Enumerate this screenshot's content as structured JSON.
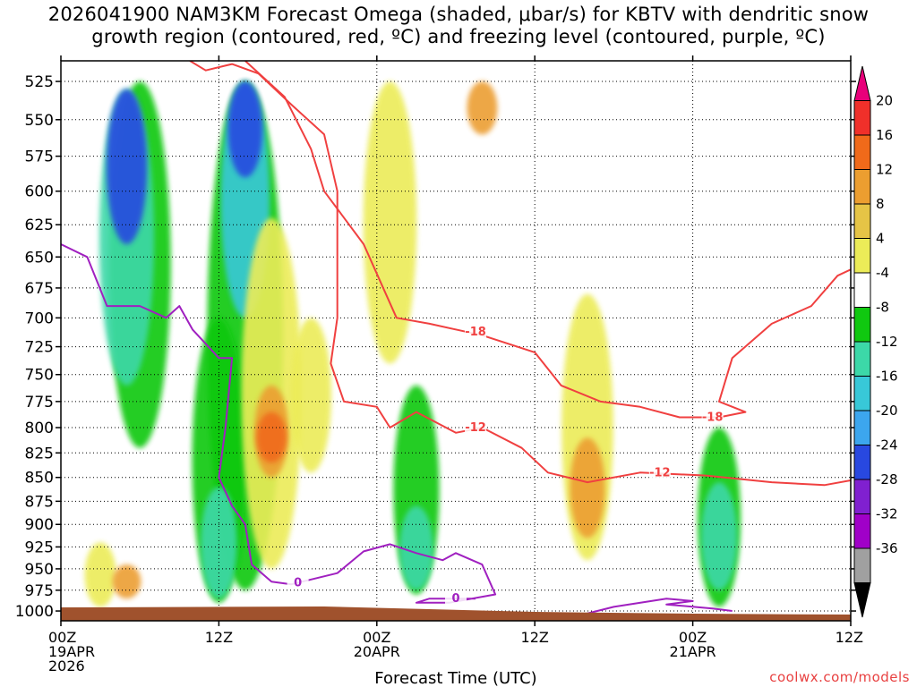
{
  "chart_data": {
    "type": "heatmap",
    "title_line1": "2026041900 NAM3KM Forecast Omega (shaded, μbar/s) for KBTV with dendritic snow",
    "title_line2": "growth region (contoured, red, ºC) and freezing level (contoured, purple, ºC)",
    "xlabel": "Forecast Time (UTC)",
    "ylabel": "",
    "x_ticks": [
      {
        "hour": 0,
        "lines": [
          "00Z",
          "19APR",
          "2026"
        ]
      },
      {
        "hour": 12,
        "lines": [
          "12Z"
        ]
      },
      {
        "hour": 24,
        "lines": [
          "00Z",
          "20APR"
        ]
      },
      {
        "hour": 36,
        "lines": [
          "12Z"
        ]
      },
      {
        "hour": 48,
        "lines": [
          "00Z",
          "21APR"
        ]
      },
      {
        "hour": 60,
        "lines": [
          "12Z"
        ]
      }
    ],
    "xlim": [
      0,
      60
    ],
    "y_ticks": [
      525,
      550,
      575,
      600,
      625,
      650,
      675,
      700,
      725,
      750,
      775,
      800,
      825,
      850,
      875,
      900,
      925,
      950,
      975,
      1000
    ],
    "ylim": [
      512,
      1012
    ],
    "y_scale": "log (pressure, hPa)",
    "grid": true,
    "colorbar": {
      "labels": [
        20,
        16,
        12,
        8,
        4,
        -4,
        -8,
        -12,
        -16,
        -20,
        -24,
        -28,
        -32,
        -36
      ],
      "colors": [
        "#e8007a",
        "#f0302a",
        "#f06a1a",
        "#ec9e30",
        "#e6c446",
        "#ecec58",
        "#ffffff",
        "#10c810",
        "#3cd8a8",
        "#38c8d8",
        "#3ca6ee",
        "#2848e0",
        "#8020d0",
        "#a000c8",
        "#a0a0a0",
        "#000000"
      ]
    },
    "shading": [
      {
        "name": "green",
        "x": 6,
        "p1": 525,
        "p2": 820,
        "color": "#10c810"
      },
      {
        "name": "teal",
        "x": 5,
        "p1": 530,
        "p2": 760,
        "color": "#3cd8a8"
      },
      {
        "name": "blue",
        "x": 5,
        "p1": 530,
        "p2": 640,
        "color": "#2848e0"
      },
      {
        "name": "green",
        "x": 14,
        "p1": 525,
        "p2": 975,
        "color": "#10c810"
      },
      {
        "name": "cyan",
        "x": 14,
        "p1": 525,
        "p2": 700,
        "color": "#38c8d8"
      },
      {
        "name": "blue",
        "x": 14,
        "p1": 525,
        "p2": 590,
        "color": "#2848e0"
      },
      {
        "name": "green",
        "x": 12,
        "p1": 700,
        "p2": 990,
        "color": "#10c810"
      },
      {
        "name": "teal",
        "x": 12,
        "p1": 860,
        "p2": 985,
        "color": "#3cd8a8"
      },
      {
        "name": "yellow",
        "x": 16,
        "p1": 620,
        "p2": 950,
        "color": "#ecec58"
      },
      {
        "name": "orange",
        "x": 16,
        "p1": 760,
        "p2": 850,
        "color": "#ec9e30"
      },
      {
        "name": "red",
        "x": 16,
        "p1": 785,
        "p2": 835,
        "color": "#f06a1a"
      },
      {
        "name": "yellow",
        "x": 19,
        "p1": 700,
        "p2": 845,
        "color": "#ecec58"
      },
      {
        "name": "yellow",
        "x": 25,
        "p1": 525,
        "p2": 740,
        "color": "#ecec58"
      },
      {
        "name": "orange",
        "x": 32,
        "p1": 525,
        "p2": 560,
        "color": "#ec9e30"
      },
      {
        "name": "green",
        "x": 27,
        "p1": 760,
        "p2": 980,
        "color": "#10c810"
      },
      {
        "name": "teal",
        "x": 27,
        "p1": 880,
        "p2": 975,
        "color": "#3cd8a8"
      },
      {
        "name": "yellow",
        "x": 40,
        "p1": 680,
        "p2": 940,
        "color": "#ecec58"
      },
      {
        "name": "orange",
        "x": 40,
        "p1": 810,
        "p2": 915,
        "color": "#ec9e30"
      },
      {
        "name": "green",
        "x": 50,
        "p1": 800,
        "p2": 995,
        "color": "#10c810"
      },
      {
        "name": "teal",
        "x": 50,
        "p1": 855,
        "p2": 975,
        "color": "#3cd8a8"
      },
      {
        "name": "yellow",
        "x": 3,
        "p1": 920,
        "p2": 995,
        "color": "#ecec58"
      },
      {
        "name": "orange",
        "x": 5,
        "p1": 945,
        "p2": 985,
        "color": "#ec9e30"
      }
    ],
    "contours": {
      "dgz_minus12": {
        "label": "-12",
        "color": "#f04040",
        "points": [
          [
            9.8,
            512
          ],
          [
            11,
            518
          ],
          [
            13,
            514
          ],
          [
            15,
            520
          ],
          [
            17.5,
            540
          ],
          [
            20,
            560
          ],
          [
            21,
            600
          ],
          [
            21,
            700
          ],
          [
            20.5,
            740
          ],
          [
            21.5,
            775
          ],
          [
            24,
            780
          ],
          [
            25,
            800
          ],
          [
            27,
            785
          ],
          [
            30,
            805
          ],
          [
            32,
            800
          ],
          [
            35,
            820
          ],
          [
            37,
            845
          ],
          [
            40,
            855
          ],
          [
            44,
            845
          ],
          [
            49,
            848
          ],
          [
            54,
            855
          ],
          [
            58,
            858
          ],
          [
            60,
            853
          ]
        ]
      },
      "dgz_minus18": {
        "label": "-18",
        "color": "#f04040",
        "points": [
          [
            14,
            512
          ],
          [
            17,
            535
          ],
          [
            19,
            570
          ],
          [
            20,
            600
          ],
          [
            23,
            640
          ],
          [
            25.5,
            700
          ],
          [
            28,
            705
          ],
          [
            32,
            715
          ],
          [
            36,
            730
          ],
          [
            38,
            760
          ],
          [
            41,
            775
          ],
          [
            44,
            780
          ],
          [
            47,
            790
          ],
          [
            50,
            790
          ],
          [
            52,
            785
          ],
          [
            50,
            775
          ],
          [
            51,
            735
          ],
          [
            54,
            705
          ],
          [
            57,
            690
          ],
          [
            59,
            665
          ],
          [
            60,
            660
          ]
        ]
      },
      "freezing_level_0": {
        "label": "0",
        "color": "#a020c0",
        "points": [
          [
            0,
            640
          ],
          [
            2,
            650
          ],
          [
            3.5,
            690
          ],
          [
            6,
            690
          ],
          [
            8,
            700
          ],
          [
            9,
            690
          ],
          [
            10,
            710
          ],
          [
            12,
            735
          ],
          [
            13,
            735
          ],
          [
            12.5,
            800
          ],
          [
            12,
            850
          ],
          [
            13,
            880
          ],
          [
            14,
            900
          ],
          [
            14.5,
            945
          ],
          [
            16,
            965
          ],
          [
            17.5,
            968
          ],
          [
            21,
            955
          ],
          [
            23,
            930
          ],
          [
            25,
            922
          ],
          [
            27,
            932
          ],
          [
            29,
            940
          ],
          [
            30,
            932
          ],
          [
            32,
            945
          ],
          [
            33,
            980
          ],
          [
            29.5,
            990
          ],
          [
            27,
            990
          ],
          [
            28,
            985
          ],
          [
            31.5,
            985
          ]
        ],
        "segment_b": [
          [
            39.5,
            1005
          ],
          [
            42,
            995
          ],
          [
            46,
            985
          ],
          [
            48,
            988
          ],
          [
            46,
            992
          ],
          [
            49.5,
            997
          ],
          [
            51,
            1000
          ]
        ]
      }
    },
    "surface_color": "#a0522d"
  },
  "credit": "coolwx.com/models"
}
